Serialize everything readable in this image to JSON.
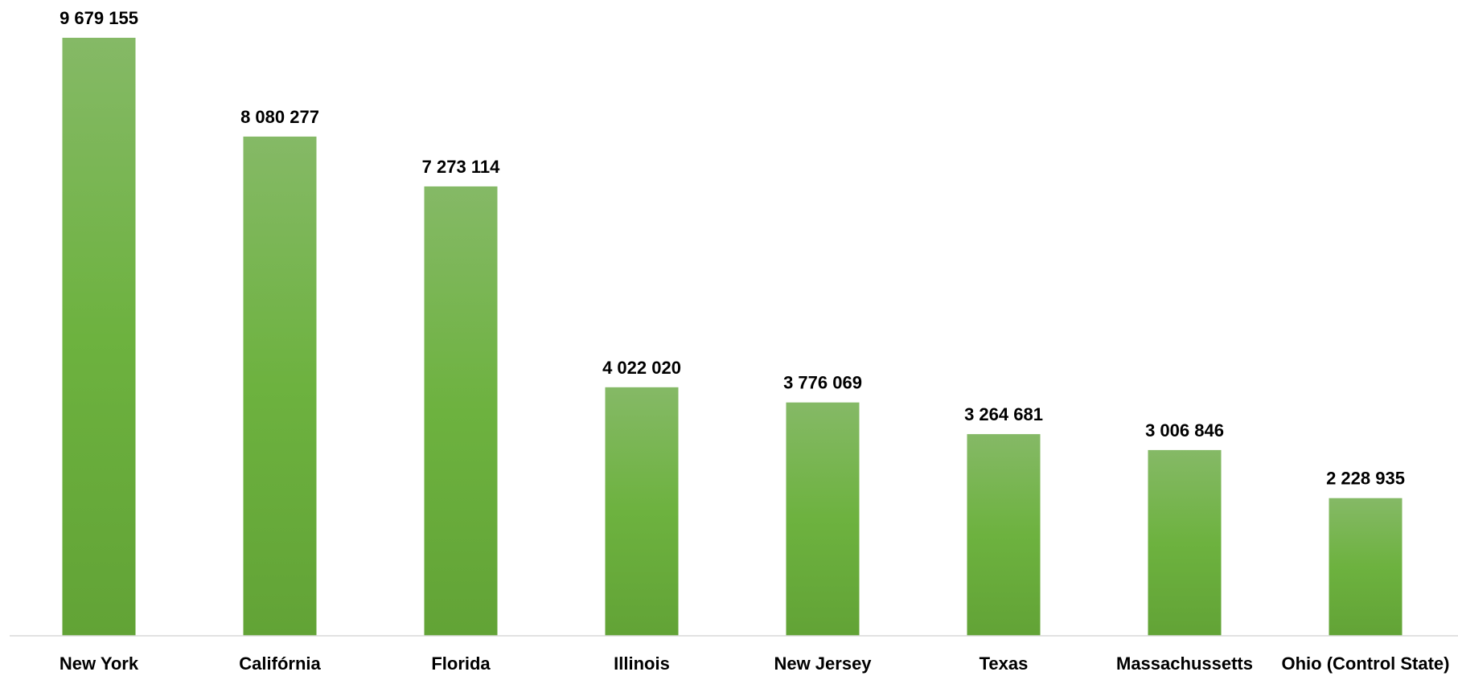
{
  "chart_data": {
    "type": "bar",
    "title": "",
    "xlabel": "",
    "ylabel": "",
    "categories": [
      "New York",
      "Califórnia",
      "Florida",
      "Illinois",
      "New Jersey",
      "Texas",
      "Massachussetts",
      "Ohio (Control State)"
    ],
    "values": [
      9679155,
      8080277,
      7273114,
      4022020,
      3776069,
      3264681,
      3006846,
      2228935
    ],
    "value_labels": [
      "9 679 155",
      "8 080 277",
      "7 273 114",
      "4 022 020",
      "3 776 069",
      "3 264 681",
      "3 006 846",
      "2 228 935"
    ],
    "ylim": [
      0,
      9679155
    ],
    "grid": false,
    "legend": "none",
    "colors": {
      "bar_top": "#85b966",
      "bar_mid": "#6db23f",
      "bar_bottom": "#62a336",
      "axis_line": "#d9d9d9"
    }
  }
}
